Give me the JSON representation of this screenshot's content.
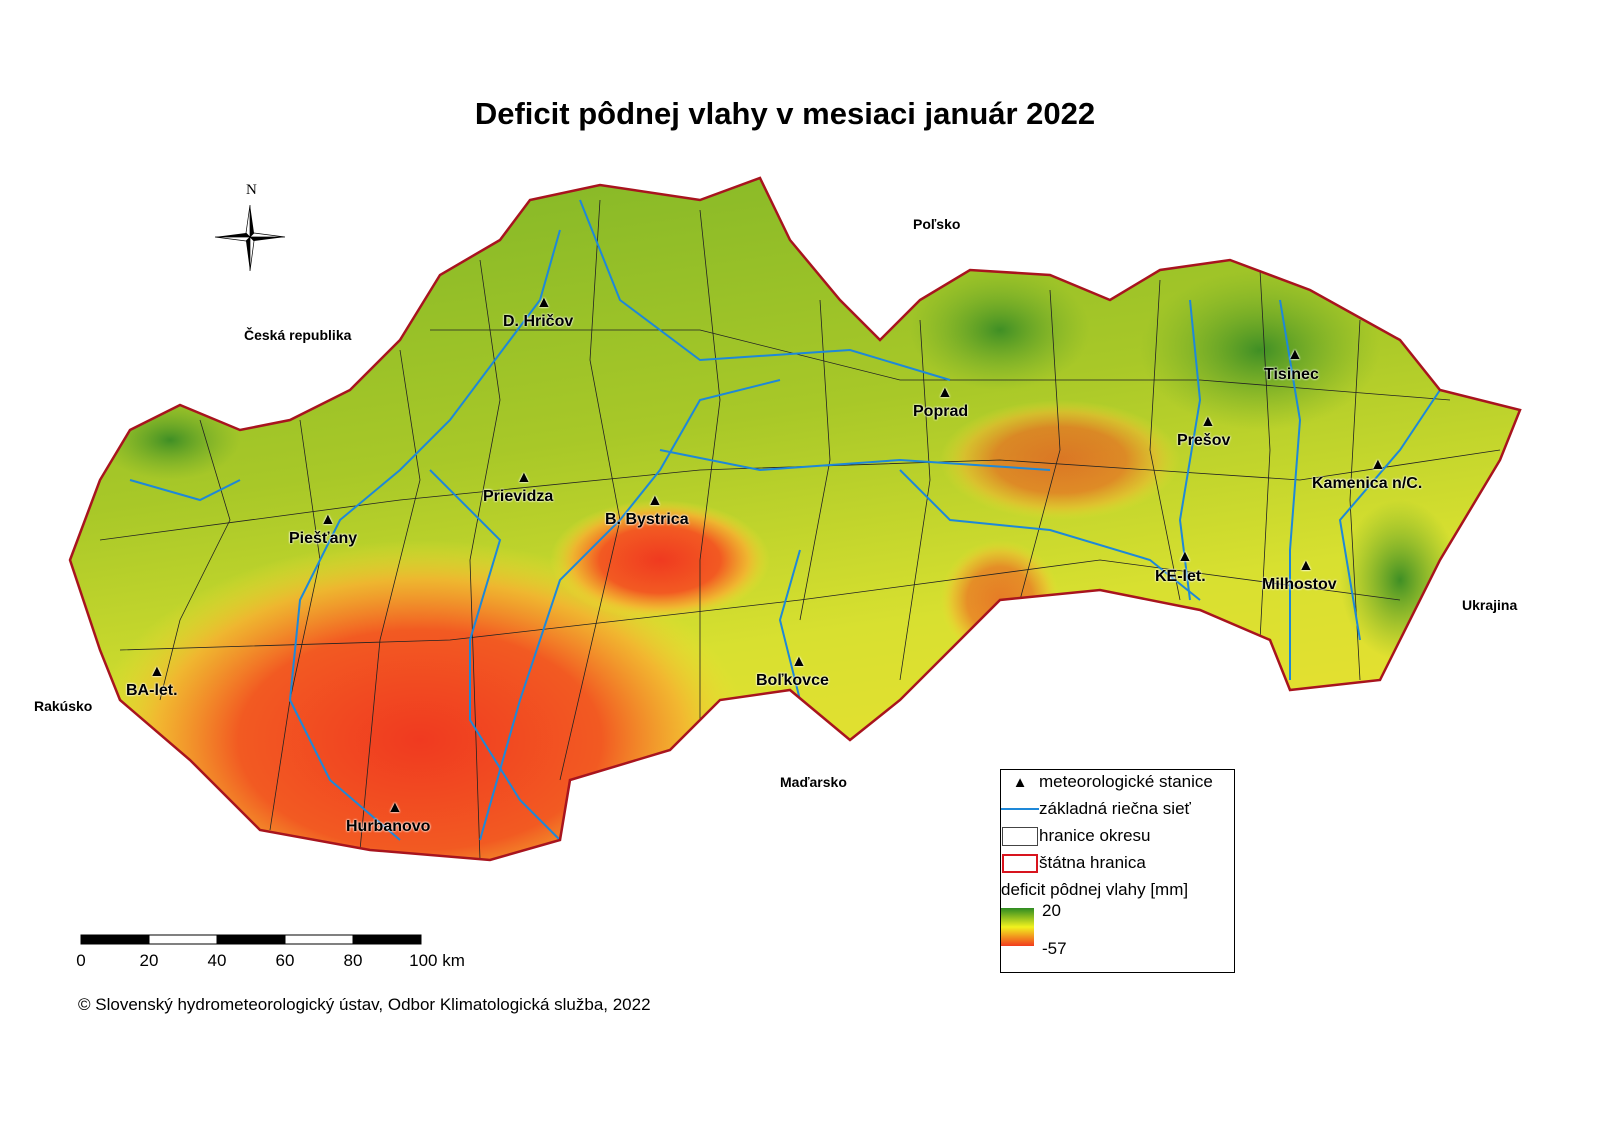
{
  "title": "Deficit pôdnej vlahy v mesiaci január 2022",
  "north_arrow": {
    "label": "N",
    "icon": "compass-rose-icon"
  },
  "countries": {
    "czech": "Česká republika",
    "poland": "Poľsko",
    "ukraine": "Ukrajina",
    "hungary": "Maďarsko",
    "austria": "Rakúsko"
  },
  "stations": [
    {
      "name": "D. Hričov"
    },
    {
      "name": "Poprad"
    },
    {
      "name": "Tisinec"
    },
    {
      "name": "Prešov"
    },
    {
      "name": "Kamenica n/C."
    },
    {
      "name": "Prievidza"
    },
    {
      "name": "B. Bystrica"
    },
    {
      "name": "Piešťany"
    },
    {
      "name": "KE-let."
    },
    {
      "name": "Milhostov"
    },
    {
      "name": "Boľkovce"
    },
    {
      "name": "BA-let."
    },
    {
      "name": "Hurbanovo"
    }
  ],
  "legend": {
    "stations": "meteorologické stanice",
    "rivers": "základná riečna sieť",
    "districts": "hranice okresu",
    "border": "štátna hranica",
    "scale_title": "deficit pôdnej vlahy [mm]",
    "max": "20",
    "min": "-57",
    "colors": {
      "max": "#2e8b22",
      "mid": "#f2f21e",
      "min": "#f23b1e",
      "river": "#1e88d8",
      "border": "#a8141e"
    }
  },
  "scalebar": {
    "labels": [
      "0",
      "20",
      "40",
      "60",
      "80",
      "100 km"
    ]
  },
  "copyright": "© Slovenský hydrometeorologický ústav, Odbor Klimatologická služba, 2022"
}
